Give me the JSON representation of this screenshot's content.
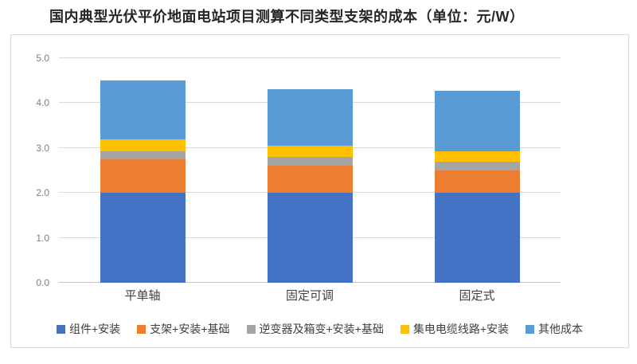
{
  "title": "国内典型光伏平价地面电站项目测算不同类型支架的成本（单位：元/W）",
  "chart_data": {
    "type": "bar",
    "stacked": true,
    "title": "国内典型光伏平价地面电站项目测算不同类型支架的成本（单位：元/W）",
    "unit": "元/W",
    "categories": [
      "平单轴",
      "固定可调",
      "固定式"
    ],
    "series": [
      {
        "name": "组件+安装",
        "color": "#4472C4",
        "values": [
          2.0,
          2.0,
          2.0
        ]
      },
      {
        "name": "支架+安装+基础",
        "color": "#ED7D31",
        "values": [
          0.75,
          0.6,
          0.5
        ]
      },
      {
        "name": "逆变器及箱变+安装+基础",
        "color": "#A5A5A5",
        "values": [
          0.17,
          0.2,
          0.2
        ]
      },
      {
        "name": "集电电缆线路+安装",
        "color": "#FFC000",
        "values": [
          0.28,
          0.25,
          0.22
        ]
      },
      {
        "name": "其他成本",
        "color": "#5B9BD5",
        "values": [
          1.3,
          1.25,
          1.35
        ]
      }
    ],
    "totals": [
      4.5,
      4.3,
      4.27
    ],
    "ylim": [
      0,
      5
    ],
    "yticks": [
      0,
      1,
      2,
      3,
      4,
      5
    ],
    "ytick_labels": [
      "0.0",
      "1.0",
      "2.0",
      "3.0",
      "4.0",
      "5.0"
    ],
    "xlabel": "",
    "ylabel": "",
    "grid": true,
    "legend_position": "bottom"
  },
  "colors": {
    "frame_border": "#d9d9d9",
    "gridline": "#d9d9d9",
    "axis_tick_text": "#808080",
    "category_text": "#404040",
    "legend_text": "#404040",
    "title_text": "#262626",
    "background": "#ffffff"
  }
}
